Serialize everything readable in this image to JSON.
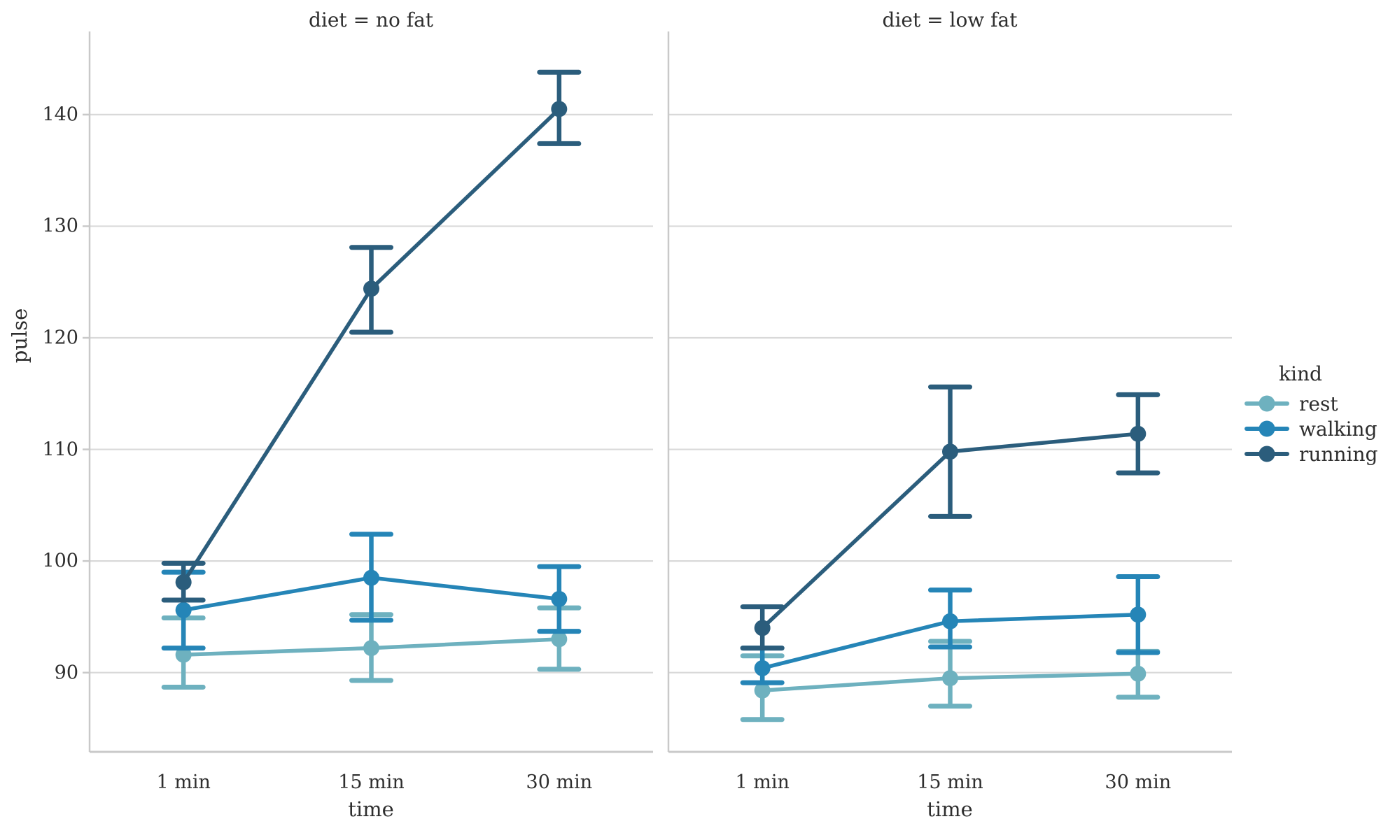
{
  "figure": {
    "background": "#ffffff",
    "text_color": "#2e2e2e",
    "grid_color": "#d9d9d9",
    "spine_color": "#c9c9c9"
  },
  "chart_data": {
    "type": "line",
    "description": "Seaborn-style faceted point plot of mean pulse with confidence-interval error bars, by time, exercise kind and diet",
    "categories": [
      "1 min",
      "15 min",
      "30 min"
    ],
    "xlabel": "time",
    "ylabel": "pulse",
    "yticks": [
      90,
      100,
      110,
      120,
      130,
      140
    ],
    "ylim": [
      82.9,
      147.45
    ],
    "grid": true,
    "facets": [
      {
        "title": "diet = no fat",
        "series": [
          {
            "name": "rest",
            "means": [
              91.6,
              92.2,
              93.0
            ],
            "ci": [
              [
                88.7,
                94.9
              ],
              [
                89.3,
                95.2
              ],
              [
                90.3,
                95.8
              ]
            ]
          },
          {
            "name": "walking",
            "means": [
              95.6,
              98.5,
              96.6
            ],
            "ci": [
              [
                92.2,
                99.0
              ],
              [
                94.7,
                102.4
              ],
              [
                93.7,
                99.5
              ]
            ]
          },
          {
            "name": "running",
            "means": [
              98.1,
              124.4,
              140.5
            ],
            "ci": [
              [
                96.5,
                99.8
              ],
              [
                120.5,
                128.1
              ],
              [
                137.4,
                143.8
              ]
            ]
          }
        ]
      },
      {
        "title": "diet = low fat",
        "series": [
          {
            "name": "rest",
            "means": [
              88.4,
              89.5,
              89.9
            ],
            "ci": [
              [
                85.8,
                91.5
              ],
              [
                87.0,
                92.8
              ],
              [
                87.8,
                91.9
              ]
            ]
          },
          {
            "name": "walking",
            "means": [
              90.4,
              94.6,
              95.2
            ],
            "ci": [
              [
                89.1,
                92.2
              ],
              [
                92.3,
                97.4
              ],
              [
                91.8,
                98.6
              ]
            ]
          },
          {
            "name": "running",
            "means": [
              94.0,
              109.8,
              111.4
            ],
            "ci": [
              [
                92.2,
                95.9
              ],
              [
                104.0,
                115.6
              ],
              [
                107.9,
                114.9
              ]
            ]
          }
        ]
      }
    ],
    "series_colors": {
      "rest": "#6eb1bf",
      "walking": "#2585b7",
      "running": "#2b5d7c"
    },
    "legend": {
      "title": "kind",
      "position": "right",
      "entries": [
        {
          "label": "rest",
          "color": "#6eb1bf"
        },
        {
          "label": "walking",
          "color": "#2585b7"
        },
        {
          "label": "running",
          "color": "#2b5d7c"
        }
      ]
    }
  }
}
